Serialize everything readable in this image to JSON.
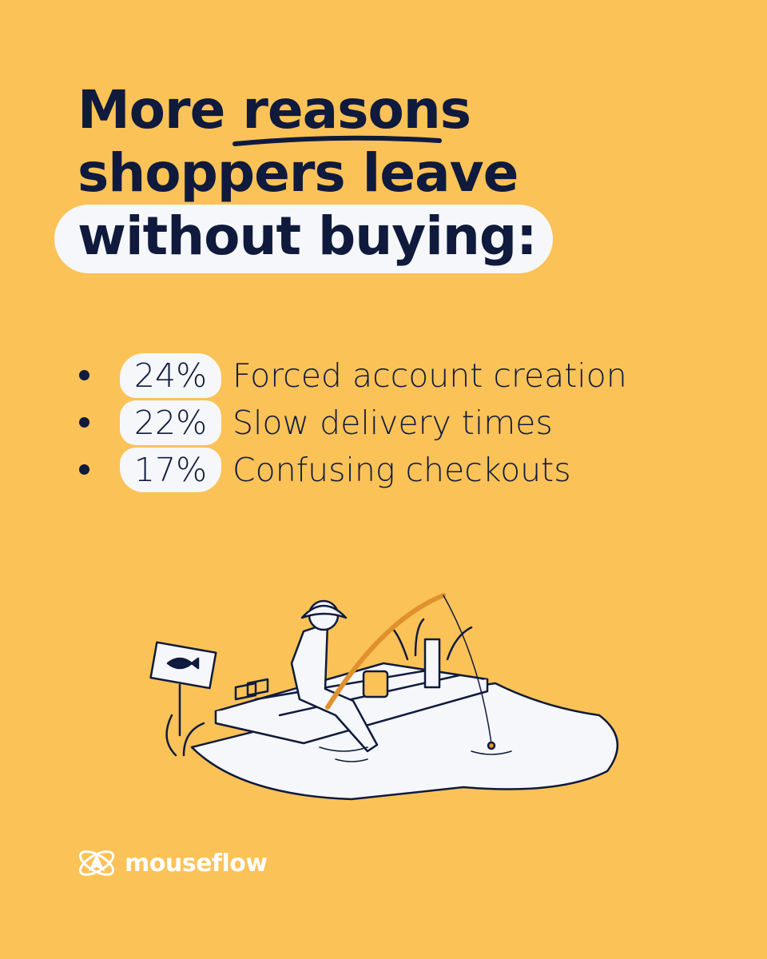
{
  "headline": {
    "line1_prefix": "More ",
    "line1_emphasis": "reasons",
    "line2": "shoppers leave",
    "line3": "without buying:"
  },
  "reasons": [
    {
      "percent": "24%",
      "label": "Forced account creation"
    },
    {
      "percent": "22%",
      "label": "Slow delivery times"
    },
    {
      "percent": "17%",
      "label": "Confusing checkouts"
    }
  ],
  "brand": {
    "name": "mouseflow",
    "icon": "mouseflow-atom-logo"
  },
  "colors": {
    "background": "#FBC257",
    "text": "#0F1A3D",
    "highlight": "#F5F7FA"
  }
}
